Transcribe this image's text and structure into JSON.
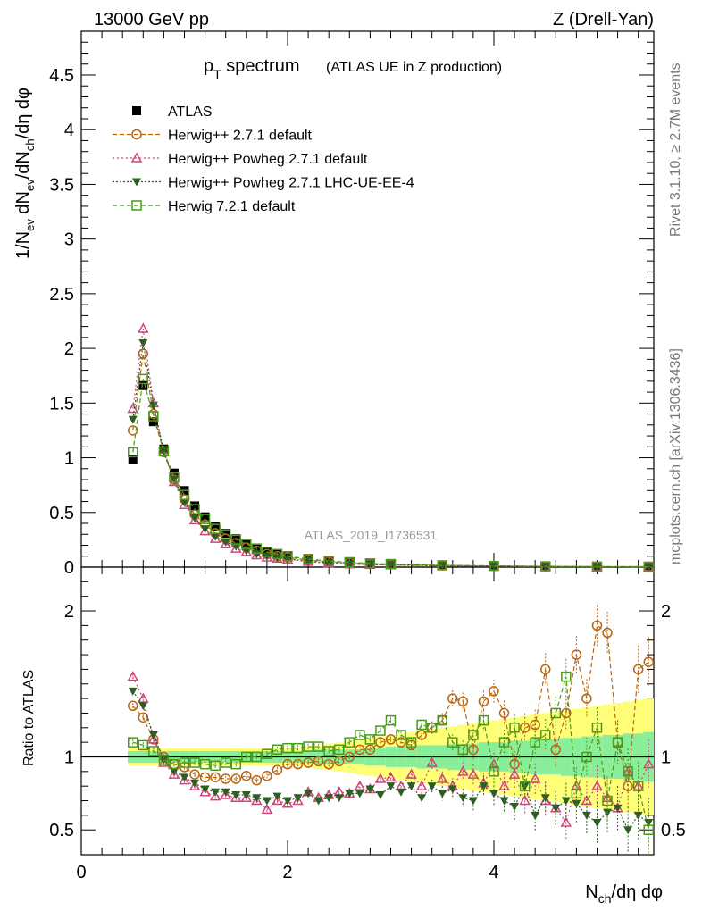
{
  "header": {
    "left": "13000 GeV pp",
    "right": "Z (Drell-Yan)"
  },
  "title": {
    "main": "p",
    "main_sub": "T",
    "main_rest": " spectrum",
    "detail": "(ATLAS UE in Z production)"
  },
  "side_labels": {
    "rivet": "Rivet 3.1.10, ≥ 2.7M events",
    "mcplots": "mcplots.cern.ch [arXiv:1306.3436]"
  },
  "watermark": "ATLAS_2019_I1736531",
  "axes": {
    "ylabel_top": "1/N_ev dN_ev/dN_ch/dη dφ",
    "ylabel_bottom": "Ratio to ATLAS",
    "xlabel": "N_ch/dη dφ"
  },
  "legend": [
    {
      "key": "atlas",
      "label": "ATLAS",
      "color": "#000000",
      "marker": "filled-square"
    },
    {
      "key": "hw271",
      "label": "Herwig++ 2.7.1 default",
      "color": "#b8650f",
      "marker": "open-circle"
    },
    {
      "key": "pow271",
      "label": "Herwig++ Powheg 2.7.1 default",
      "color": "#d0457b",
      "marker": "open-triangle"
    },
    {
      "key": "powee4",
      "label": "Herwig++ Powheg 2.7.1 LHC-UE-EE-4",
      "color": "#2d5e22",
      "marker": "filled-triangle-down"
    },
    {
      "key": "hw721",
      "label": "Herwig 7.2.1 default",
      "color": "#4a9a1a",
      "marker": "open-square"
    }
  ],
  "chart_data": [
    {
      "type": "scatter",
      "panel": "main",
      "xlim": [
        0,
        5.55
      ],
      "ylim": [
        0,
        4.9
      ],
      "xticks": [
        "0",
        "2",
        "4"
      ],
      "yticks": [
        "0",
        "0.5",
        "1",
        "1.5",
        "2",
        "2.5",
        "3",
        "3.5",
        "4",
        "4.5"
      ],
      "x": [
        0.5,
        0.6,
        0.7,
        0.8,
        0.9,
        1.0,
        1.1,
        1.2,
        1.3,
        1.4,
        1.5,
        1.6,
        1.7,
        1.8,
        1.9,
        2.0,
        2.2,
        2.4,
        2.6,
        2.8,
        3.0,
        3.5,
        4.0,
        4.5,
        5.0,
        5.5
      ],
      "series": [
        {
          "name": "ATLAS",
          "values": [
            0.98,
            1.66,
            1.33,
            1.08,
            0.86,
            0.7,
            0.56,
            0.46,
            0.37,
            0.31,
            0.26,
            0.21,
            0.17,
            0.14,
            0.12,
            0.1,
            0.07,
            0.05,
            0.04,
            0.03,
            0.025,
            0.015,
            0.01,
            0.006,
            0.004,
            0.003
          ]
        },
        {
          "name": "Herwig++ 2.7.1 default",
          "values": [
            1.25,
            1.95,
            1.4,
            1.05,
            0.8,
            0.62,
            0.48,
            0.39,
            0.31,
            0.26,
            0.22,
            0.18,
            0.15,
            0.12,
            0.1,
            0.09,
            0.065,
            0.05,
            0.04,
            0.03,
            0.025,
            0.016,
            0.011,
            0.007,
            0.005,
            0.004
          ]
        },
        {
          "name": "Herwig++ Powheg 2.7.1 default",
          "values": [
            1.45,
            2.18,
            1.5,
            1.05,
            0.78,
            0.57,
            0.43,
            0.33,
            0.26,
            0.21,
            0.17,
            0.14,
            0.11,
            0.09,
            0.08,
            0.07,
            0.05,
            0.035,
            0.028,
            0.022,
            0.018,
            0.011,
            0.007,
            0.004,
            0.003,
            0.002
          ]
        },
        {
          "name": "Herwig++ Powheg 2.7.1 LHC-UE-EE-4",
          "values": [
            1.35,
            2.05,
            1.48,
            1.06,
            0.8,
            0.59,
            0.45,
            0.35,
            0.28,
            0.23,
            0.19,
            0.15,
            0.12,
            0.1,
            0.09,
            0.075,
            0.055,
            0.04,
            0.03,
            0.024,
            0.02,
            0.012,
            0.008,
            0.005,
            0.003,
            0.002
          ]
        },
        {
          "name": "Herwig 7.2.1 default",
          "values": [
            1.05,
            1.72,
            1.38,
            1.06,
            0.82,
            0.66,
            0.53,
            0.44,
            0.35,
            0.3,
            0.25,
            0.21,
            0.17,
            0.14,
            0.12,
            0.1,
            0.075,
            0.055,
            0.045,
            0.034,
            0.028,
            0.017,
            0.011,
            0.007,
            0.005,
            0.004
          ]
        }
      ]
    },
    {
      "type": "scatter",
      "panel": "ratio",
      "xlim": [
        0,
        5.55
      ],
      "ylim": [
        0.33,
        2.3
      ],
      "yticks": [
        "0.5",
        "1",
        "2"
      ],
      "xlabel": "N_ch/dη dφ",
      "ylabel": "Ratio to ATLAS",
      "x": [
        0.5,
        0.6,
        0.7,
        0.8,
        0.9,
        1.0,
        1.1,
        1.2,
        1.3,
        1.4,
        1.5,
        1.6,
        1.7,
        1.8,
        1.9,
        2.0,
        2.1,
        2.2,
        2.3,
        2.4,
        2.5,
        2.6,
        2.7,
        2.8,
        2.9,
        3.0,
        3.1,
        3.2,
        3.3,
        3.4,
        3.5,
        3.6,
        3.7,
        3.8,
        3.9,
        4.0,
        4.1,
        4.2,
        4.3,
        4.4,
        4.5,
        4.6,
        4.7,
        4.8,
        4.9,
        5.0,
        5.1,
        5.2,
        5.3,
        5.4,
        5.5
      ],
      "band_inner": [
        0.04,
        0.04,
        0.04,
        0.04,
        0.04,
        0.04,
        0.04,
        0.04,
        0.04,
        0.04,
        0.04,
        0.04,
        0.04,
        0.04,
        0.04,
        0.04,
        0.04,
        0.04,
        0.05,
        0.05,
        0.05,
        0.05,
        0.05,
        0.06,
        0.06,
        0.07,
        0.07,
        0.07,
        0.08,
        0.08,
        0.08,
        0.09,
        0.09,
        0.09,
        0.1,
        0.1,
        0.1,
        0.11,
        0.11,
        0.12,
        0.12,
        0.12,
        0.13,
        0.13,
        0.14,
        0.14,
        0.15,
        0.15,
        0.16,
        0.16,
        0.17
      ],
      "band_outer": [
        0.06,
        0.06,
        0.06,
        0.06,
        0.06,
        0.06,
        0.06,
        0.06,
        0.06,
        0.06,
        0.06,
        0.06,
        0.06,
        0.06,
        0.06,
        0.06,
        0.06,
        0.07,
        0.08,
        0.09,
        0.1,
        0.11,
        0.12,
        0.13,
        0.14,
        0.15,
        0.16,
        0.17,
        0.18,
        0.19,
        0.2,
        0.21,
        0.22,
        0.23,
        0.24,
        0.25,
        0.26,
        0.27,
        0.28,
        0.29,
        0.3,
        0.31,
        0.32,
        0.33,
        0.34,
        0.35,
        0.36,
        0.37,
        0.38,
        0.39,
        0.4
      ],
      "series": [
        {
          "name": "Herwig++ 2.7.1 default",
          "values": [
            1.35,
            1.27,
            1.12,
            1.0,
            0.95,
            0.93,
            0.88,
            0.86,
            0.86,
            0.85,
            0.85,
            0.87,
            0.84,
            0.87,
            0.91,
            0.95,
            0.95,
            0.96,
            0.97,
            0.95,
            0.97,
            1.0,
            1.05,
            1.05,
            1.1,
            1.12,
            1.1,
            1.08,
            1.15,
            1.2,
            1.25,
            1.4,
            1.38,
            1.05,
            1.38,
            1.45,
            1.3,
            0.95,
            1.2,
            1.22,
            1.6,
            1.05,
            1.3,
            1.7,
            1.4,
            1.9,
            1.85,
            1.1,
            0.8,
            1.6,
            1.65
          ]
        },
        {
          "name": "Herwig++ Powheg 2.7.1 default",
          "values": [
            1.55,
            1.4,
            1.12,
            0.96,
            0.88,
            0.84,
            0.8,
            0.76,
            0.73,
            0.74,
            0.72,
            0.72,
            0.7,
            0.64,
            0.7,
            0.68,
            0.7,
            0.76,
            0.72,
            0.74,
            0.76,
            0.75,
            0.8,
            0.78,
            0.85,
            0.86,
            0.8,
            0.88,
            0.8,
            0.96,
            0.85,
            0.8,
            0.9,
            0.88,
            0.82,
            0.95,
            0.8,
            0.88,
            0.7,
            0.85,
            0.7,
            0.65,
            0.55,
            0.8,
            0.7,
            0.8,
            0.72,
            0.65,
            0.9,
            0.8,
            0.95
          ]
        },
        {
          "name": "Herwig++ Powheg 2.7.1 LHC-UE-EE-4",
          "values": [
            1.45,
            1.35,
            1.15,
            0.98,
            0.9,
            0.86,
            0.82,
            0.78,
            0.76,
            0.76,
            0.74,
            0.74,
            0.72,
            0.7,
            0.73,
            0.7,
            0.72,
            0.75,
            0.7,
            0.72,
            0.72,
            0.75,
            0.75,
            0.78,
            0.74,
            0.8,
            0.76,
            0.8,
            0.72,
            0.8,
            0.75,
            0.78,
            0.72,
            0.7,
            0.8,
            0.75,
            0.7,
            0.66,
            0.8,
            0.6,
            0.72,
            0.65,
            0.7,
            0.68,
            0.6,
            0.55,
            0.62,
            0.65,
            0.5,
            0.6,
            0.55
          ]
        },
        {
          "name": "Herwig 7.2.1 default",
          "values": [
            1.1,
            1.08,
            1.04,
            0.98,
            0.95,
            0.96,
            0.96,
            0.95,
            0.94,
            0.96,
            0.95,
            1.0,
            1.0,
            1.02,
            1.05,
            1.06,
            1.06,
            1.07,
            1.07,
            1.04,
            1.05,
            1.1,
            1.15,
            1.12,
            1.18,
            1.25,
            1.15,
            1.1,
            1.22,
            1.2,
            1.25,
            1.1,
            1.05,
            1.15,
            1.25,
            0.9,
            1.1,
            1.2,
            0.8,
            1.1,
            1.15,
            1.3,
            1.55,
            0.75,
            1.0,
            1.2,
            0.7,
            1.1,
            0.9,
            0.8,
            0.5
          ]
        }
      ]
    }
  ]
}
